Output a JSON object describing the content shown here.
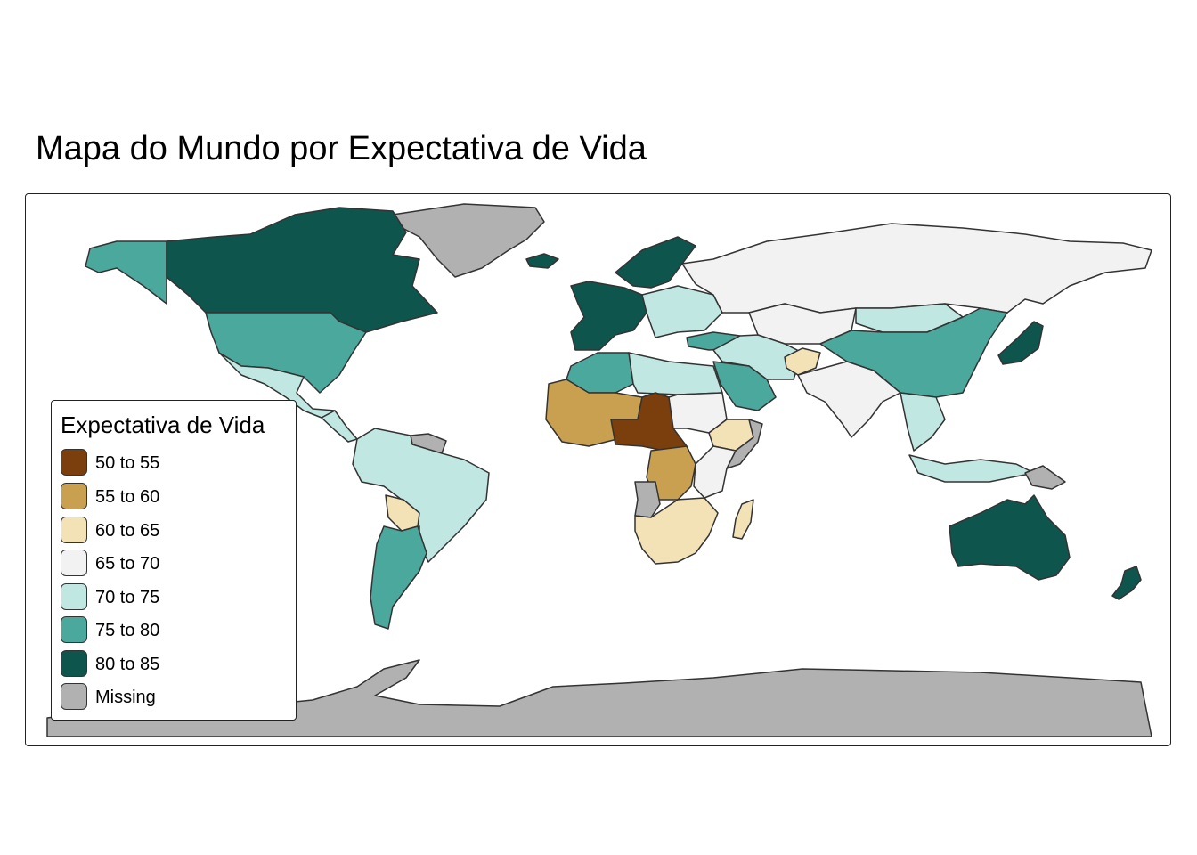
{
  "title": "Mapa do Mundo por Expectativa de Vida",
  "legend": {
    "title": "Expectativa de Vida",
    "items": [
      {
        "label": "50 to 55",
        "color": "#7a3f0c"
      },
      {
        "label": "55 to 60",
        "color": "#c9a04f"
      },
      {
        "label": "60 to 65",
        "color": "#f4e2b7"
      },
      {
        "label": "65 to 70",
        "color": "#f2f2f2"
      },
      {
        "label": "70 to 75",
        "color": "#c0e7e1"
      },
      {
        "label": "75 to 80",
        "color": "#4ba89c"
      },
      {
        "label": "80 to 85",
        "color": "#0e564d"
      },
      {
        "label": "Missing",
        "color": "#b1b1b1"
      }
    ]
  },
  "regions": [
    {
      "name": "Canada",
      "category": "80 to 85"
    },
    {
      "name": "Greenland",
      "category": "Missing"
    },
    {
      "name": "Alaska",
      "category": "75 to 80"
    },
    {
      "name": "United States",
      "category": "75 to 80"
    },
    {
      "name": "Mexico",
      "category": "70 to 75"
    },
    {
      "name": "Central America",
      "category": "70 to 75"
    },
    {
      "name": "Guianas",
      "category": "Missing"
    },
    {
      "name": "Brazil",
      "category": "70 to 75"
    },
    {
      "name": "Bolivia",
      "category": "60 to 65"
    },
    {
      "name": "Argentina",
      "category": "75 to 80"
    },
    {
      "name": "Iceland",
      "category": "80 to 85"
    },
    {
      "name": "Scandinavia",
      "category": "80 to 85"
    },
    {
      "name": "Western Europe",
      "category": "80 to 85"
    },
    {
      "name": "Eastern Europe",
      "category": "70 to 75"
    },
    {
      "name": "Russia",
      "category": "65 to 70"
    },
    {
      "name": "Turkey",
      "category": "75 to 80"
    },
    {
      "name": "Middle East",
      "category": "70 to 75"
    },
    {
      "name": "Saudi Arabia",
      "category": "75 to 80"
    },
    {
      "name": "Afghanistan",
      "category": "60 to 65"
    },
    {
      "name": "Kazakhstan",
      "category": "65 to 70"
    },
    {
      "name": "Mongolia",
      "category": "70 to 75"
    },
    {
      "name": "China",
      "category": "75 to 80"
    },
    {
      "name": "India",
      "category": "65 to 70"
    },
    {
      "name": "Southeast Asia",
      "category": "70 to 75"
    },
    {
      "name": "Japan",
      "category": "80 to 85"
    },
    {
      "name": "Indonesia",
      "category": "70 to 75"
    },
    {
      "name": "Papua New Guinea",
      "category": "Missing"
    },
    {
      "name": "Australia",
      "category": "80 to 85"
    },
    {
      "name": "New Zealand",
      "category": "80 to 85"
    },
    {
      "name": "North Africa",
      "category": "75 to 80"
    },
    {
      "name": "Libya/Egypt",
      "category": "70 to 75"
    },
    {
      "name": "Sahel",
      "category": "55 to 60"
    },
    {
      "name": "Chad/Nigeria",
      "category": "50 to 55"
    },
    {
      "name": "Sudan",
      "category": "65 to 70"
    },
    {
      "name": "Ethiopia",
      "category": "60 to 65"
    },
    {
      "name": "Somalia",
      "category": "Missing"
    },
    {
      "name": "Congo",
      "category": "55 to 60"
    },
    {
      "name": "East Africa",
      "category": "65 to 70"
    },
    {
      "name": "Angola",
      "category": "Missing"
    },
    {
      "name": "Southern Africa",
      "category": "60 to 65"
    },
    {
      "name": "Madagascar",
      "category": "60 to 65"
    },
    {
      "name": "Antarctica",
      "category": "Missing"
    }
  ]
}
